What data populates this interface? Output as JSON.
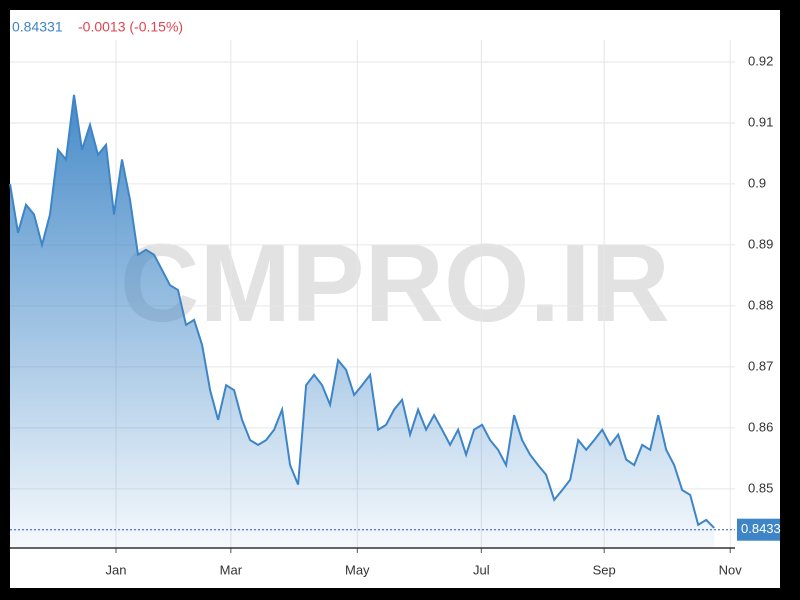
{
  "header": {
    "price": "0.84331",
    "change": "-0.0013 (-0.15%)"
  },
  "chart_data": {
    "type": "area",
    "watermark": "CMPRO.IR",
    "color": "#3d85c6",
    "values": [
      0.9,
      0.892,
      0.8966,
      0.895,
      0.89,
      0.895,
      0.9056,
      0.904,
      0.9146,
      0.9056,
      0.9097,
      0.9048,
      0.9064,
      0.895,
      0.904,
      0.8974,
      0.8884,
      0.8892,
      0.8884,
      0.8859,
      0.8834,
      0.8826,
      0.8769,
      0.8777,
      0.8736,
      0.8662,
      0.8613,
      0.867,
      0.8662,
      0.8613,
      0.858,
      0.8572,
      0.858,
      0.8597,
      0.863,
      0.8539,
      0.8507,
      0.867,
      0.8687,
      0.867,
      0.8638,
      0.8711,
      0.8695,
      0.8654,
      0.867,
      0.8687,
      0.8597,
      0.8605,
      0.863,
      0.8646,
      0.8589,
      0.863,
      0.8597,
      0.8621,
      0.8597,
      0.8572,
      0.8597,
      0.8556,
      0.8597,
      0.8605,
      0.858,
      0.8564,
      0.8539,
      0.8621,
      0.858,
      0.8556,
      0.8539,
      0.8523,
      0.8482,
      0.8498,
      0.8515,
      0.858,
      0.8564,
      0.858,
      0.8597,
      0.8572,
      0.8589,
      0.8548,
      0.8539,
      0.8572,
      0.8564,
      0.8621,
      0.8564,
      0.8539,
      0.8498,
      0.849,
      0.8441,
      0.8449,
      0.8436
    ],
    "xlim": [
      0,
      90.6
    ],
    "xticks": [
      {
        "value": 13.25,
        "label": "Jan"
      },
      {
        "value": 27.6,
        "label": "Mar"
      },
      {
        "value": 43.4,
        "label": "May"
      },
      {
        "value": 58.9,
        "label": "Jul"
      },
      {
        "value": 74.25,
        "label": "Sep"
      },
      {
        "value": 90,
        "label": "Nov"
      }
    ],
    "ylim": [
      0.8403,
      0.9236
    ],
    "yticks": [
      0.85,
      0.86,
      0.87,
      0.88,
      0.89,
      0.9,
      0.91,
      0.92
    ],
    "grid": true,
    "last_value": 0.8433
  }
}
